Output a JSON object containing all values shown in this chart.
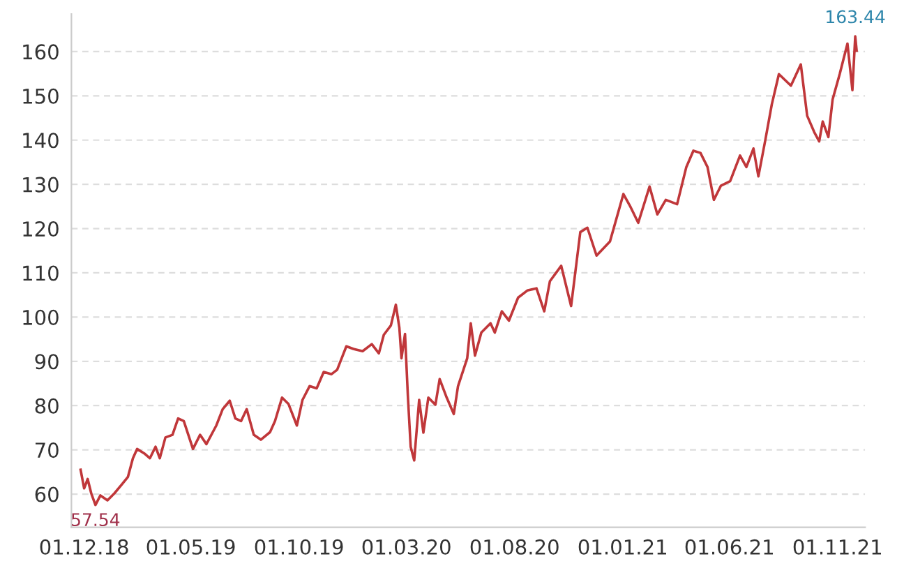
{
  "chart_data": {
    "type": "line",
    "color": "#c0373a",
    "x": [
      "2018-11-26",
      "2018-12-01",
      "2018-12-06",
      "2018-12-11",
      "2018-12-17",
      "2018-12-24",
      "2019-01-03",
      "2019-01-13",
      "2019-01-24",
      "2019-02-01",
      "2019-02-08",
      "2019-02-14",
      "2019-02-24",
      "2019-03-04",
      "2019-03-12",
      "2019-03-18",
      "2019-03-26",
      "2019-04-05",
      "2019-04-13",
      "2019-04-21",
      "2019-05-04",
      "2019-05-14",
      "2019-05-23",
      "2019-06-06",
      "2019-06-15",
      "2019-06-25",
      "2019-07-03",
      "2019-07-11",
      "2019-07-19",
      "2019-07-29",
      "2019-08-08",
      "2019-08-21",
      "2019-08-28",
      "2019-09-07",
      "2019-09-16",
      "2019-09-28",
      "2019-10-06",
      "2019-10-16",
      "2019-10-26",
      "2019-11-05",
      "2019-11-16",
      "2019-11-24",
      "2019-12-07",
      "2019-12-17",
      "2019-12-30",
      "2020-01-12",
      "2020-01-22",
      "2020-01-29",
      "2020-02-08",
      "2020-02-15",
      "2020-02-20",
      "2020-02-23",
      "2020-02-28",
      "2020-03-03",
      "2020-03-07",
      "2020-03-12",
      "2020-03-19",
      "2020-03-25",
      "2020-04-01",
      "2020-04-11",
      "2020-04-17",
      "2020-04-27",
      "2020-05-07",
      "2020-05-13",
      "2020-05-26",
      "2020-05-31",
      "2020-06-06",
      "2020-06-15",
      "2020-06-28",
      "2020-07-04",
      "2020-07-14",
      "2020-07-24",
      "2020-08-06",
      "2020-08-19",
      "2020-09-01",
      "2020-09-12",
      "2020-09-20",
      "2020-10-06",
      "2020-10-20",
      "2020-11-02",
      "2020-11-12",
      "2020-11-25",
      "2020-12-14",
      "2021-01-02",
      "2021-01-12",
      "2021-01-23",
      "2021-02-08",
      "2021-02-19",
      "2021-03-03",
      "2021-03-19",
      "2021-04-01",
      "2021-04-11",
      "2021-04-21",
      "2021-05-01",
      "2021-05-10",
      "2021-05-20",
      "2021-06-02",
      "2021-06-16",
      "2021-06-25",
      "2021-07-05",
      "2021-07-12",
      "2021-07-22",
      "2021-07-31",
      "2021-08-10",
      "2021-08-27",
      "2021-09-10",
      "2021-09-19",
      "2021-09-29",
      "2021-10-06",
      "2021-10-11",
      "2021-10-19",
      "2021-10-25",
      "2021-11-04",
      "2021-11-15",
      "2021-11-22",
      "2021-11-26",
      "2021-11-28"
    ],
    "values": [
      65.5,
      61.3,
      63.4,
      60.2,
      57.54,
      59.7,
      58.6,
      60.2,
      62.3,
      63.9,
      68.1,
      70.2,
      69.2,
      68.1,
      70.7,
      68.1,
      72.8,
      73.4,
      77.1,
      76.5,
      70.2,
      73.4,
      71.3,
      75.5,
      79.2,
      81.1,
      77.1,
      76.5,
      79.2,
      73.4,
      72.3,
      74.0,
      76.5,
      81.8,
      80.4,
      75.5,
      81.3,
      84.4,
      83.9,
      87.6,
      87.1,
      88.1,
      93.4,
      92.8,
      92.3,
      93.9,
      91.8,
      96.0,
      98.1,
      102.8,
      97.6,
      90.7,
      96.2,
      82.3,
      70.7,
      67.6,
      81.3,
      73.9,
      81.8,
      80.2,
      86.0,
      81.8,
      78.1,
      84.4,
      90.7,
      98.6,
      91.3,
      96.5,
      98.6,
      96.5,
      101.3,
      99.2,
      104.4,
      106.0,
      106.5,
      101.3,
      108.1,
      111.6,
      102.5,
      119.2,
      120.2,
      113.9,
      117.1,
      127.8,
      124.9,
      121.3,
      129.5,
      123.2,
      126.5,
      125.5,
      133.9,
      137.6,
      137.1,
      133.9,
      126.5,
      129.7,
      130.7,
      136.5,
      133.9,
      138.1,
      131.8,
      140.2,
      148.1,
      154.9,
      152.3,
      157.1,
      145.5,
      141.8,
      139.7,
      144.2,
      140.7,
      149.2,
      154.9,
      161.8,
      151.3,
      163.44,
      160.2
    ],
    "xlim": [
      "2018-11-13",
      "2021-12-10"
    ],
    "xticks": [
      {
        "value": "2018-12-01",
        "label": "01.12.18"
      },
      {
        "value": "2019-05-01",
        "label": "01.05.19"
      },
      {
        "value": "2019-10-01",
        "label": "01.10.19"
      },
      {
        "value": "2020-03-01",
        "label": "01.03.20"
      },
      {
        "value": "2020-08-01",
        "label": "01.08.20"
      },
      {
        "value": "2021-01-01",
        "label": "01.01.21"
      },
      {
        "value": "2021-06-01",
        "label": "01.06.21"
      },
      {
        "value": "2021-11-01",
        "label": "01.11.21"
      }
    ],
    "ylim": [
      52.5,
      168.5
    ],
    "yticks": [
      60,
      70,
      80,
      90,
      100,
      110,
      120,
      130,
      140,
      150,
      160
    ],
    "grid": "y",
    "marker": "none",
    "line_style": "solid",
    "annotations": [
      {
        "text": "57.54",
        "x": "2018-12-17",
        "y": 57.54
      },
      {
        "text": "163.44",
        "x": "2021-11-26",
        "y": 163.44
      }
    ]
  }
}
